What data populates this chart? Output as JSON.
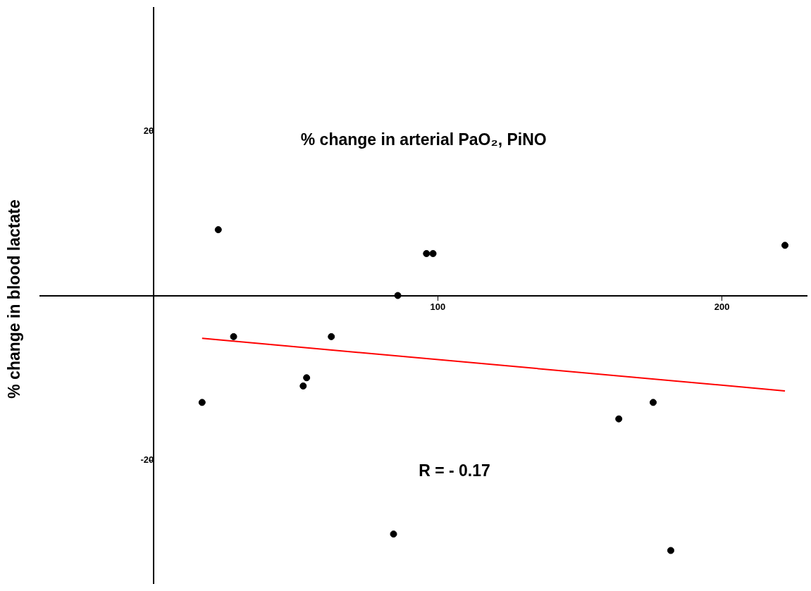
{
  "chart_data": {
    "type": "scatter",
    "xlabel": "% change in arterial PaO₂, PiNO",
    "ylabel": "% change in blood lactate",
    "annotations": [
      "R = - 0.17"
    ],
    "xlim": [
      -40,
      230
    ],
    "ylim": [
      -35,
      35
    ],
    "xticks": [
      100,
      200
    ],
    "yticks": [
      -20,
      20
    ],
    "grid": false,
    "legend": false,
    "marker": "circle",
    "series": [
      {
        "color": "#000000",
        "x": [
          17,
          22.7,
          28.1,
          52.6,
          53.8,
          62.5,
          84.4,
          85.9,
          96,
          98.3,
          163.7,
          175.8,
          182,
          222.2
        ],
        "values": [
          -13,
          8,
          -5,
          -11,
          -10,
          -5,
          -29,
          0,
          5.1,
          5.1,
          -15,
          -13,
          -31,
          6.1
        ]
      },
      {
        "type": "line",
        "color": "#ff0000",
        "x": [
          17,
          222.2
        ],
        "values": [
          -5.2,
          -11.6
        ],
        "marker": "none"
      }
    ]
  }
}
